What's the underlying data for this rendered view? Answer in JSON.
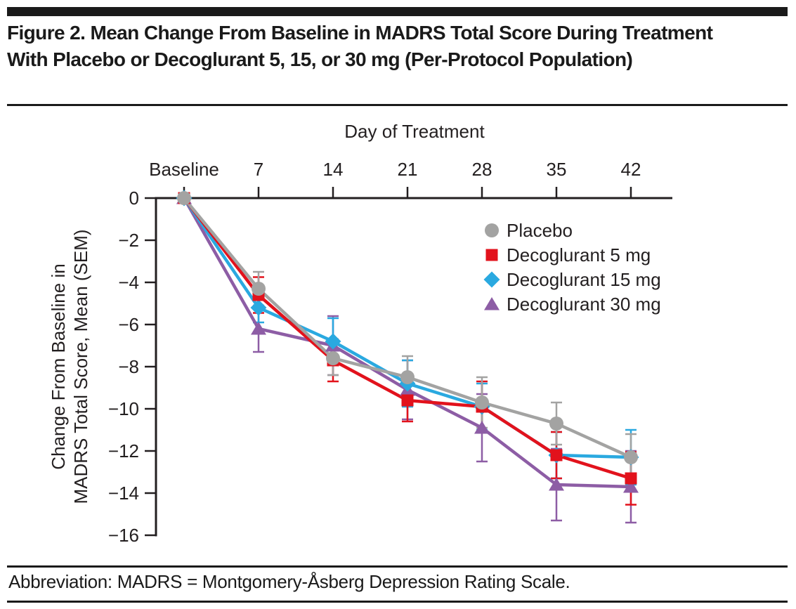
{
  "figure": {
    "title": "Figure 2. Mean Change From Baseline in MADRS Total Score During Treatment With Placebo or Decoglurant 5, 15, or 30 mg (Per-Protocol Population)"
  },
  "footer": {
    "abbreviation": "Abbreviation: MADRS = Montgomery-Åsberg Depression Rating Scale."
  },
  "colors": {
    "axis": "#231f20",
    "placebo": "#a3a3a2",
    "decoglurant_5mg": "#e2121c",
    "decoglurant_15mg": "#2aa9e0",
    "decoglurant_30mg": "#8d5da5"
  },
  "chart_data": {
    "type": "line",
    "title": "",
    "xlabel": "Day of Treatment",
    "ylabel": "Change From Baseline in MADRS Total Score, Mean (SEM)",
    "ylabel_lines": [
      "Change From Baseline in",
      "MADRS Total Score, Mean (SEM)"
    ],
    "categories": [
      "Baseline",
      "7",
      "14",
      "21",
      "28",
      "35",
      "42"
    ],
    "y_ticks": [
      0,
      -2,
      -4,
      -6,
      -8,
      -10,
      -12,
      -14,
      -16
    ],
    "ylim": [
      -16,
      0
    ],
    "x_axis_position": "top",
    "grid": false,
    "legend_position": "upper-right-inside",
    "error_bar_type": "SEM",
    "series": [
      {
        "name": "Placebo",
        "marker": "circle",
        "color": "#a3a3a2",
        "values": [
          0,
          -4.3,
          -7.6,
          -8.5,
          -9.7,
          -10.7,
          -12.3
        ],
        "sem": [
          0,
          0.8,
          0.8,
          1.0,
          1.2,
          1.0,
          1.1
        ]
      },
      {
        "name": "Decoglurant 5 mg",
        "marker": "square",
        "color": "#e2121c",
        "values": [
          0,
          -4.6,
          -7.7,
          -9.6,
          -9.9,
          -12.2,
          -13.3
        ],
        "sem": [
          0,
          0.85,
          1.0,
          1.0,
          1.2,
          1.1,
          1.25
        ]
      },
      {
        "name": "Decoglurant 15 mg",
        "marker": "diamond",
        "color": "#2aa9e0",
        "values": [
          0,
          -5.2,
          -6.8,
          -8.8,
          -9.9,
          -12.2,
          -12.3
        ],
        "sem": [
          0,
          0.7,
          1.1,
          1.1,
          1.1,
          1.1,
          1.3
        ]
      },
      {
        "name": "Decoglurant 30 mg",
        "marker": "triangle",
        "color": "#8d5da5",
        "values": [
          0,
          -6.2,
          -7.0,
          -9.1,
          -10.9,
          -13.6,
          -13.7
        ],
        "sem": [
          0,
          1.1,
          1.4,
          1.4,
          1.6,
          1.7,
          1.7
        ]
      }
    ]
  }
}
